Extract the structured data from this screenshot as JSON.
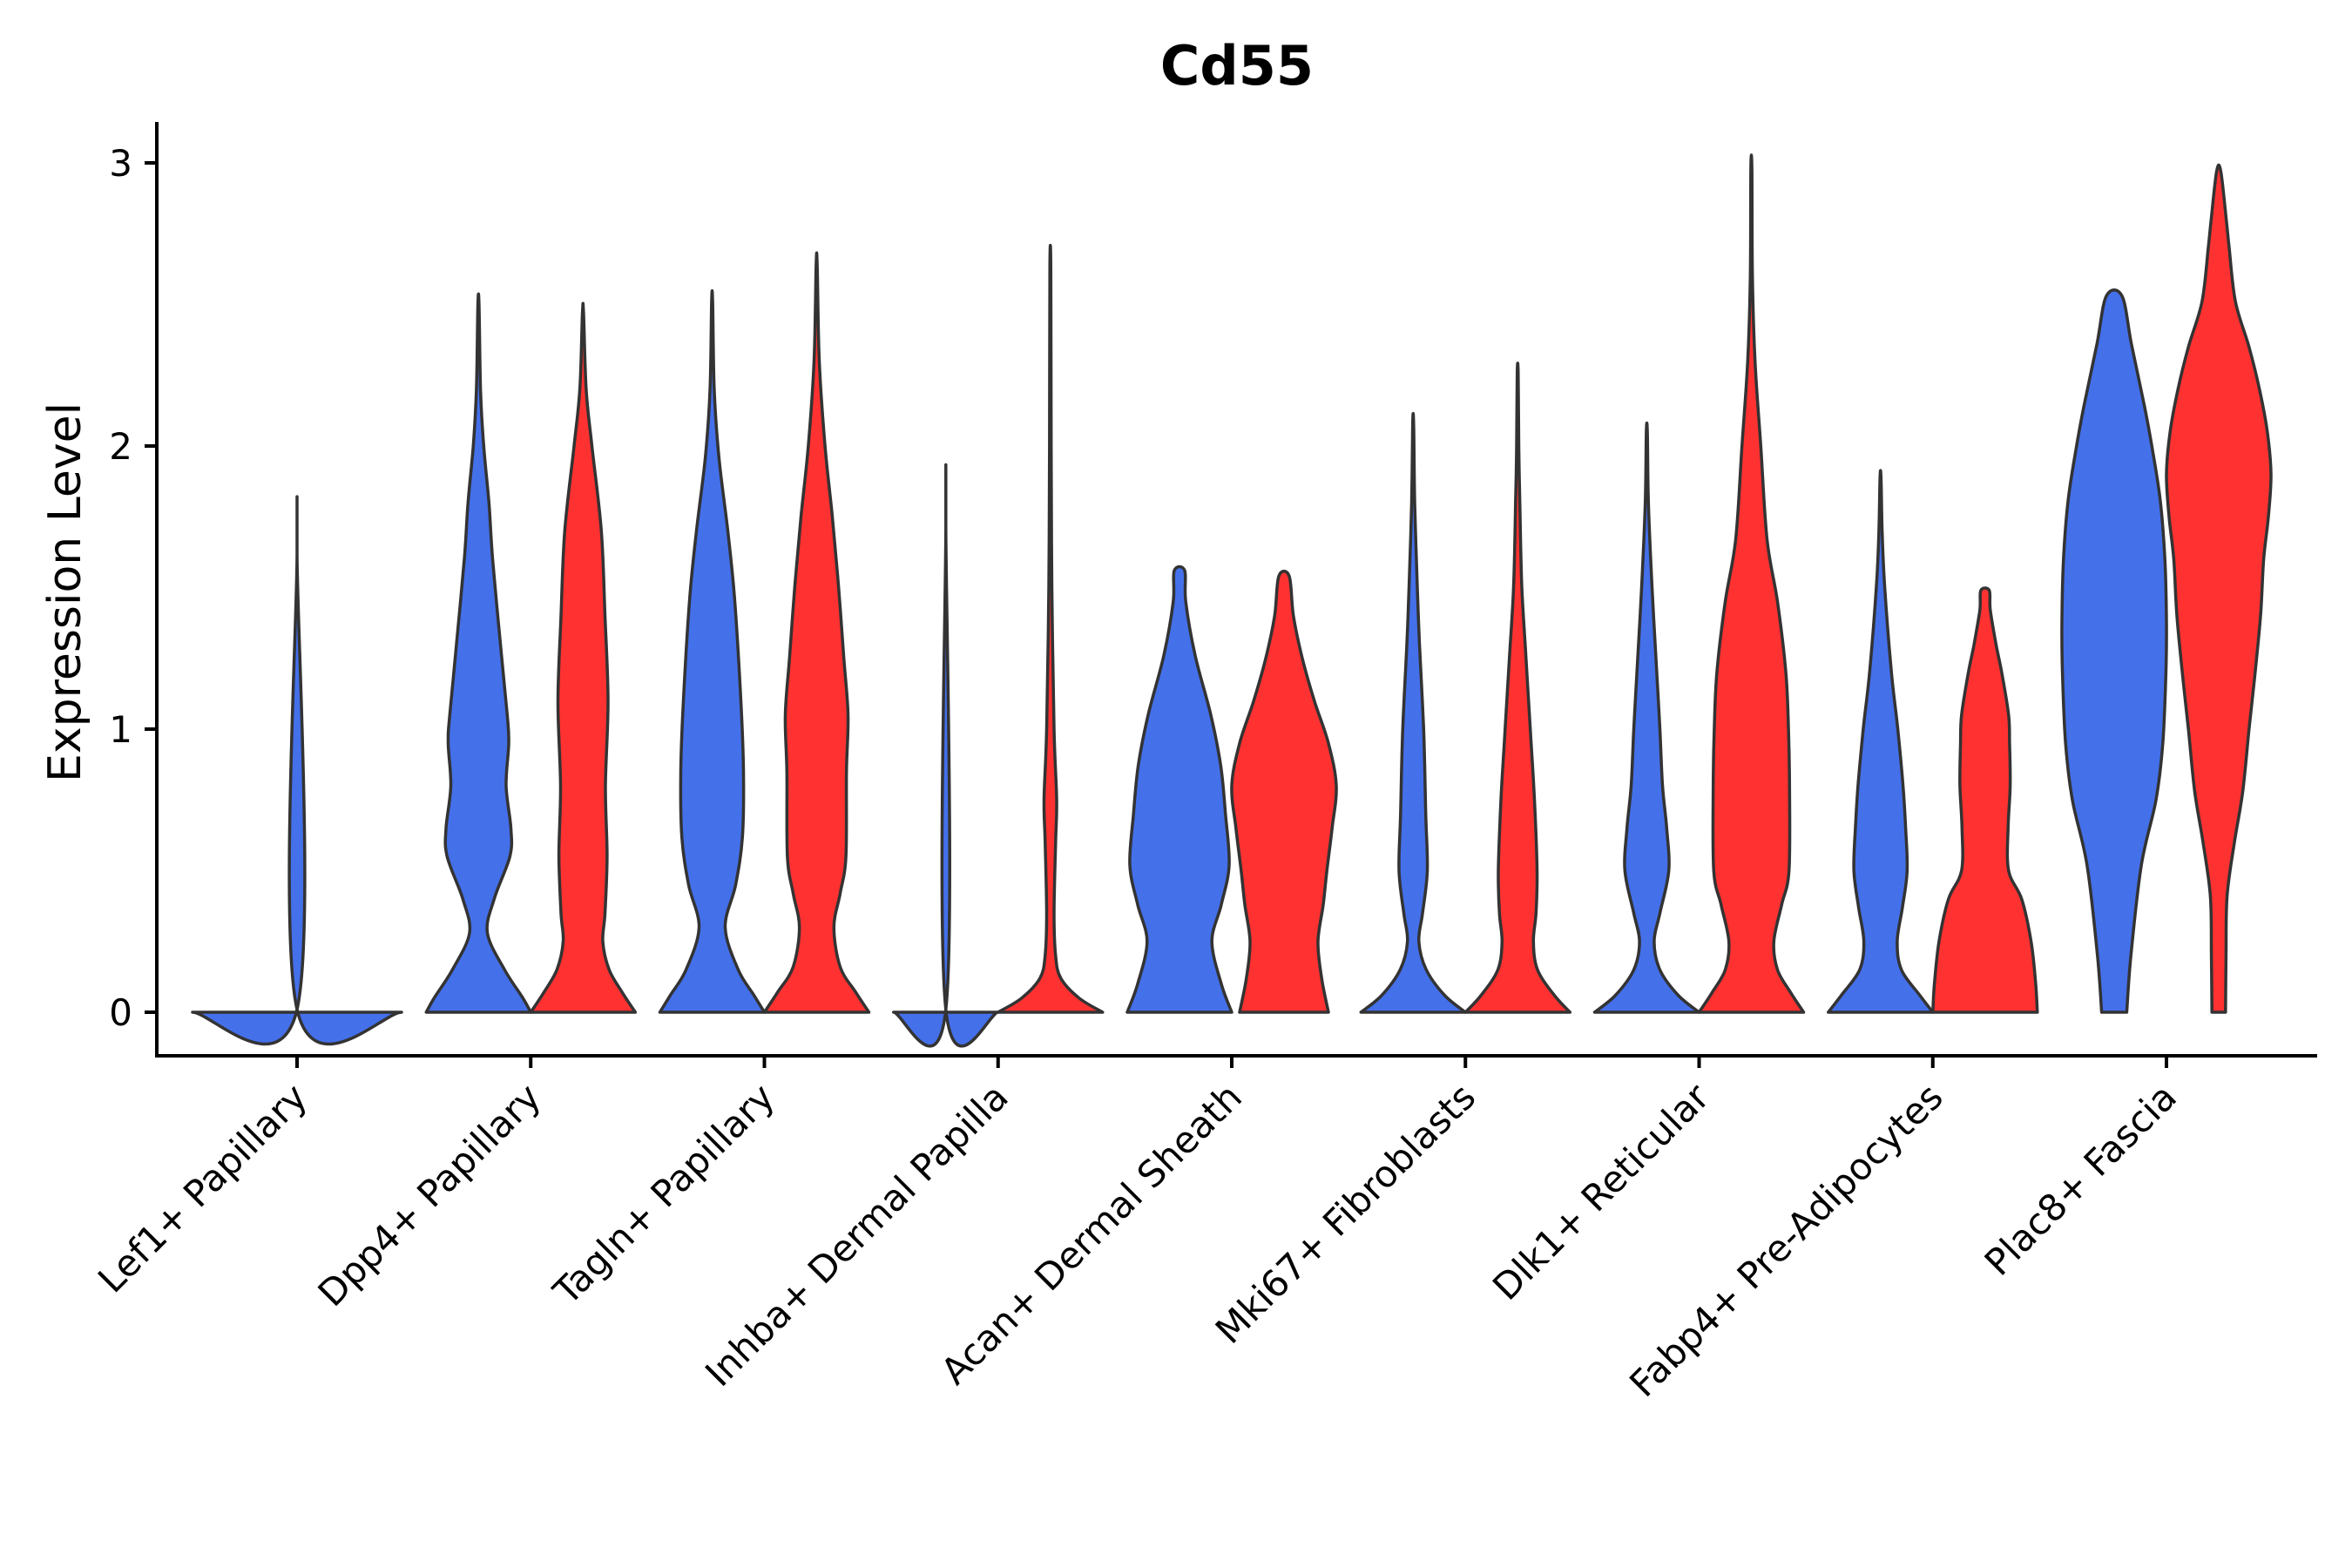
{
  "chart_data": {
    "type": "violin",
    "title": "Cd55",
    "xlabel": "",
    "ylabel": "Expression Level",
    "ylim": [
      -0.15,
      3.15
    ],
    "yticks": [
      0,
      1,
      2,
      3
    ],
    "grid": false,
    "legend": "none",
    "colors": {
      "blue": "#4470EA",
      "red": "#FF3131",
      "outline": "#333333"
    },
    "categories": [
      "Lef1+ Papillary",
      "Dpp4+ Papillary",
      "Tagln+ Papillary",
      "Inhba+ Dermal Papilla",
      "Acan+ Dermal Sheath",
      "Mki67+ Fibroblasts",
      "Dlk1+ Reticular",
      "Fabp4+ Pre-Adipocytes",
      "Plac8+ Fascia"
    ],
    "series": [
      {
        "name": "blue",
        "violins": [
          {
            "max": 1.62,
            "single": true,
            "profile": [
              [
                0,
                1.0
              ],
              [
                0.01,
                0.0
              ],
              [
                1.62,
                0.0
              ]
            ]
          },
          {
            "max": 2.5,
            "profile": [
              [
                0,
                1.0
              ],
              [
                0.05,
                0.85
              ],
              [
                0.15,
                0.5
              ],
              [
                0.28,
                0.17
              ],
              [
                0.4,
                0.3
              ],
              [
                0.55,
                0.6
              ],
              [
                0.65,
                0.62
              ],
              [
                0.8,
                0.53
              ],
              [
                0.95,
                0.58
              ],
              [
                1.05,
                0.55
              ],
              [
                1.3,
                0.42
              ],
              [
                1.6,
                0.27
              ],
              [
                1.8,
                0.2
              ],
              [
                2.0,
                0.1
              ],
              [
                2.2,
                0.04
              ],
              [
                2.5,
                0.01
              ]
            ]
          },
          {
            "max": 2.51,
            "profile": [
              [
                0,
                1.0
              ],
              [
                0.06,
                0.8
              ],
              [
                0.15,
                0.5
              ],
              [
                0.3,
                0.25
              ],
              [
                0.45,
                0.45
              ],
              [
                0.62,
                0.58
              ],
              [
                0.85,
                0.6
              ],
              [
                1.1,
                0.55
              ],
              [
                1.46,
                0.43
              ],
              [
                1.7,
                0.3
              ],
              [
                1.96,
                0.13
              ],
              [
                2.2,
                0.04
              ],
              [
                2.51,
                0.01
              ]
            ]
          },
          {
            "max": 1.72,
            "profile": [
              [
                0,
                1.0
              ],
              [
                0.01,
                0.0
              ],
              [
                1.72,
                0.0
              ]
            ]
          },
          {
            "max": 1.56,
            "profile": [
              [
                0,
                1.0
              ],
              [
                0.1,
                0.8
              ],
              [
                0.25,
                0.62
              ],
              [
                0.38,
                0.8
              ],
              [
                0.52,
                0.95
              ],
              [
                0.7,
                0.88
              ],
              [
                0.87,
                0.79
              ],
              [
                1.05,
                0.6
              ],
              [
                1.26,
                0.3
              ],
              [
                1.45,
                0.12
              ],
              [
                1.56,
                0.1
              ]
            ]
          },
          {
            "max": 2.08,
            "profile": [
              [
                0,
                1.0
              ],
              [
                0.06,
                0.6
              ],
              [
                0.15,
                0.25
              ],
              [
                0.25,
                0.11
              ],
              [
                0.35,
                0.18
              ],
              [
                0.5,
                0.27
              ],
              [
                0.7,
                0.24
              ],
              [
                1.0,
                0.2
              ],
              [
                1.3,
                0.12
              ],
              [
                1.5,
                0.08
              ],
              [
                1.8,
                0.03
              ],
              [
                2.08,
                0.01
              ]
            ]
          },
          {
            "max": 2.05,
            "profile": [
              [
                0,
                1.0
              ],
              [
                0.06,
                0.6
              ],
              [
                0.15,
                0.25
              ],
              [
                0.25,
                0.14
              ],
              [
                0.35,
                0.25
              ],
              [
                0.5,
                0.42
              ],
              [
                0.65,
                0.38
              ],
              [
                0.8,
                0.3
              ],
              [
                1.0,
                0.25
              ],
              [
                1.2,
                0.19
              ],
              [
                1.5,
                0.1
              ],
              [
                1.8,
                0.03
              ],
              [
                2.05,
                0.01
              ]
            ]
          },
          {
            "max": 1.89,
            "profile": [
              [
                0,
                1.0
              ],
              [
                0.06,
                0.75
              ],
              [
                0.15,
                0.4
              ],
              [
                0.25,
                0.32
              ],
              [
                0.37,
                0.42
              ],
              [
                0.5,
                0.51
              ],
              [
                0.65,
                0.48
              ],
              [
                0.8,
                0.43
              ],
              [
                1.0,
                0.33
              ],
              [
                1.2,
                0.21
              ],
              [
                1.5,
                0.08
              ],
              [
                1.7,
                0.03
              ],
              [
                1.89,
                0.01
              ]
            ]
          },
          {
            "max": 2.53,
            "profile": [
              [
                0,
                0.24
              ],
              [
                0.2,
                0.32
              ],
              [
                0.52,
                0.52
              ],
              [
                0.75,
                0.8
              ],
              [
                0.95,
                0.93
              ],
              [
                1.2,
                0.99
              ],
              [
                1.38,
                1.0
              ],
              [
                1.6,
                0.97
              ],
              [
                1.81,
                0.88
              ],
              [
                2.0,
                0.72
              ],
              [
                2.14,
                0.58
              ],
              [
                2.36,
                0.33
              ],
              [
                2.53,
                0.15
              ]
            ]
          }
        ]
      },
      {
        "name": "red",
        "violins": [
          null,
          {
            "max": 2.47,
            "profile": [
              [
                0,
                1.0
              ],
              [
                0.07,
                0.75
              ],
              [
                0.15,
                0.5
              ],
              [
                0.25,
                0.38
              ],
              [
                0.35,
                0.42
              ],
              [
                0.55,
                0.46
              ],
              [
                0.8,
                0.43
              ],
              [
                1.1,
                0.48
              ],
              [
                1.4,
                0.42
              ],
              [
                1.7,
                0.35
              ],
              [
                2.0,
                0.17
              ],
              [
                2.2,
                0.06
              ],
              [
                2.47,
                0.01
              ]
            ]
          },
          {
            "max": 2.64,
            "profile": [
              [
                0,
                1.0
              ],
              [
                0.07,
                0.75
              ],
              [
                0.16,
                0.45
              ],
              [
                0.3,
                0.33
              ],
              [
                0.42,
                0.45
              ],
              [
                0.55,
                0.56
              ],
              [
                0.85,
                0.57
              ],
              [
                1.05,
                0.6
              ],
              [
                1.25,
                0.52
              ],
              [
                1.5,
                0.42
              ],
              [
                1.75,
                0.3
              ],
              [
                2.0,
                0.16
              ],
              [
                2.3,
                0.05
              ],
              [
                2.64,
                0.01
              ]
            ]
          },
          {
            "max": 2.63,
            "profile": [
              [
                0,
                1.0
              ],
              [
                0.05,
                0.55
              ],
              [
                0.12,
                0.2
              ],
              [
                0.2,
                0.1
              ],
              [
                0.35,
                0.07
              ],
              [
                0.6,
                0.1
              ],
              [
                0.75,
                0.12
              ],
              [
                1.0,
                0.07
              ],
              [
                1.5,
                0.03
              ],
              [
                2.0,
                0.015
              ],
              [
                2.63,
                0.01
              ]
            ]
          },
          {
            "max": 1.54,
            "profile": [
              [
                0,
                0.85
              ],
              [
                0.12,
                0.72
              ],
              [
                0.25,
                0.65
              ],
              [
                0.38,
                0.75
              ],
              [
                0.5,
                0.82
              ],
              [
                0.65,
                0.92
              ],
              [
                0.8,
                1.0
              ],
              [
                0.95,
                0.85
              ],
              [
                1.1,
                0.58
              ],
              [
                1.25,
                0.35
              ],
              [
                1.4,
                0.18
              ],
              [
                1.54,
                0.1
              ]
            ]
          },
          {
            "max": 2.26,
            "profile": [
              [
                0,
                1.0
              ],
              [
                0.06,
                0.7
              ],
              [
                0.15,
                0.38
              ],
              [
                0.25,
                0.3
              ],
              [
                0.35,
                0.35
              ],
              [
                0.5,
                0.37
              ],
              [
                0.75,
                0.32
              ],
              [
                1.0,
                0.24
              ],
              [
                1.25,
                0.16
              ],
              [
                1.5,
                0.08
              ],
              [
                1.8,
                0.04
              ],
              [
                2.0,
                0.02
              ],
              [
                2.26,
                0.01
              ]
            ]
          },
          {
            "max": 2.98,
            "profile": [
              [
                0,
                1.0
              ],
              [
                0.07,
                0.75
              ],
              [
                0.15,
                0.5
              ],
              [
                0.25,
                0.43
              ],
              [
                0.38,
                0.58
              ],
              [
                0.5,
                0.72
              ],
              [
                0.8,
                0.73
              ],
              [
                1.0,
                0.71
              ],
              [
                1.2,
                0.66
              ],
              [
                1.45,
                0.5
              ],
              [
                1.67,
                0.3
              ],
              [
                2.0,
                0.18
              ],
              [
                2.3,
                0.07
              ],
              [
                2.6,
                0.02
              ],
              [
                2.98,
                0.01
              ]
            ]
          },
          {
            "max": 1.49,
            "profile": [
              [
                0,
                1.0
              ],
              [
                0.1,
                0.97
              ],
              [
                0.25,
                0.88
              ],
              [
                0.4,
                0.7
              ],
              [
                0.5,
                0.45
              ],
              [
                0.65,
                0.44
              ],
              [
                0.8,
                0.48
              ],
              [
                0.95,
                0.47
              ],
              [
                1.05,
                0.45
              ],
              [
                1.2,
                0.32
              ],
              [
                1.3,
                0.21
              ],
              [
                1.42,
                0.1
              ],
              [
                1.49,
                0.08
              ]
            ]
          },
          {
            "max": 2.97,
            "profile": [
              [
                0,
                0.13
              ],
              [
                0.2,
                0.14
              ],
              [
                0.41,
                0.16
              ],
              [
                0.6,
                0.3
              ],
              [
                0.78,
                0.46
              ],
              [
                1.0,
                0.58
              ],
              [
                1.17,
                0.68
              ],
              [
                1.4,
                0.8
              ],
              [
                1.6,
                0.86
              ],
              [
                1.75,
                0.95
              ],
              [
                1.9,
                1.0
              ],
              [
                2.05,
                0.93
              ],
              [
                2.2,
                0.78
              ],
              [
                2.35,
                0.58
              ],
              [
                2.51,
                0.32
              ],
              [
                2.7,
                0.2
              ],
              [
                2.79,
                0.15
              ],
              [
                2.97,
                0.04
              ]
            ]
          }
        ]
      }
    ]
  }
}
